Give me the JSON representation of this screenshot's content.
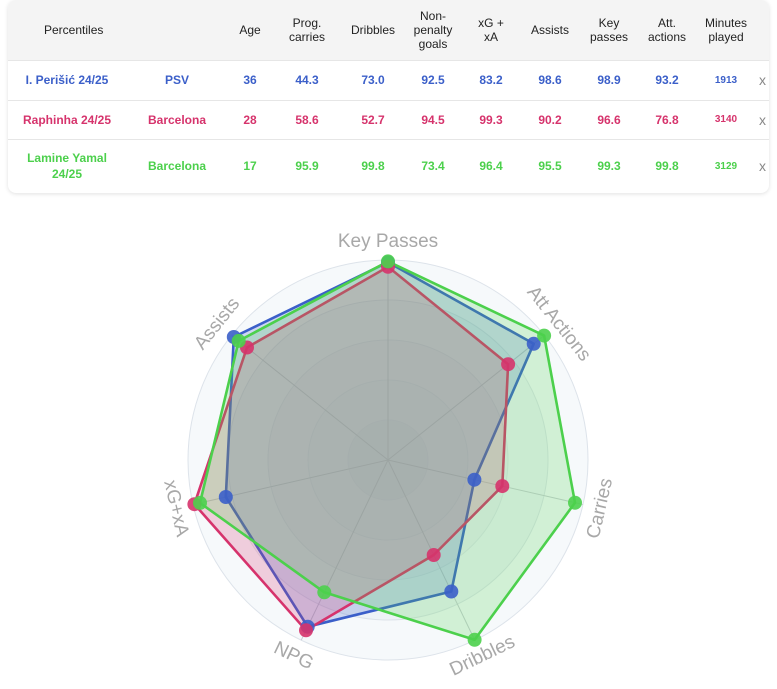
{
  "table": {
    "headers": [
      "Percentiles",
      "",
      "Age",
      "Prog.\ncarries",
      "Dribbles",
      "Non-\npenalty\ngoals",
      "xG +\nxA",
      "Assists",
      "Key\npasses",
      "Att.\nactions",
      "Minutes\nplayed",
      ""
    ],
    "rows": [
      {
        "player": "I. Perišić 24/25",
        "team": "PSV",
        "age": "36",
        "prog_carries": "44.3",
        "dribbles": "73.0",
        "npg": "92.5",
        "xgxa": "83.2",
        "assists": "98.6",
        "key_passes": "98.9",
        "att_actions": "93.2",
        "minutes": "1913",
        "remove": "x",
        "color": "#3b5fc9"
      },
      {
        "player": "Raphinha 24/25",
        "team": "Barcelona",
        "age": "28",
        "prog_carries": "58.6",
        "dribbles": "52.7",
        "npg": "94.5",
        "xgxa": "99.3",
        "assists": "90.2",
        "key_passes": "96.6",
        "att_actions": "76.8",
        "minutes": "3140",
        "remove": "x",
        "color": "#d6336c"
      },
      {
        "player": "Lamine Yamal 24/25",
        "team": "Barcelona",
        "age": "17",
        "prog_carries": "95.9",
        "dribbles": "99.8",
        "npg": "73.4",
        "xgxa": "96.4",
        "assists": "95.5",
        "key_passes": "99.3",
        "att_actions": "99.8",
        "minutes": "3129",
        "remove": "x",
        "color": "#4cd04c"
      }
    ]
  },
  "chart_data": {
    "type": "radar",
    "axes": [
      "Key Passes",
      "Att Actions",
      "Carries",
      "Dribbles",
      "NPG",
      "xG+xA",
      "Assists"
    ],
    "range": [
      0,
      100
    ],
    "series": [
      {
        "name": "I. Perišić 24/25",
        "color": "#3b5fc9",
        "values": [
          98.9,
          93.2,
          44.3,
          73.0,
          92.5,
          83.2,
          98.6
        ]
      },
      {
        "name": "Raphinha 24/25",
        "color": "#d6336c",
        "values": [
          96.6,
          76.8,
          58.6,
          52.7,
          94.5,
          99.3,
          90.2
        ]
      },
      {
        "name": "Lamine Yamal 24/25",
        "color": "#4cd04c",
        "values": [
          99.3,
          99.8,
          95.9,
          99.8,
          73.4,
          96.4,
          95.5
        ]
      }
    ]
  }
}
